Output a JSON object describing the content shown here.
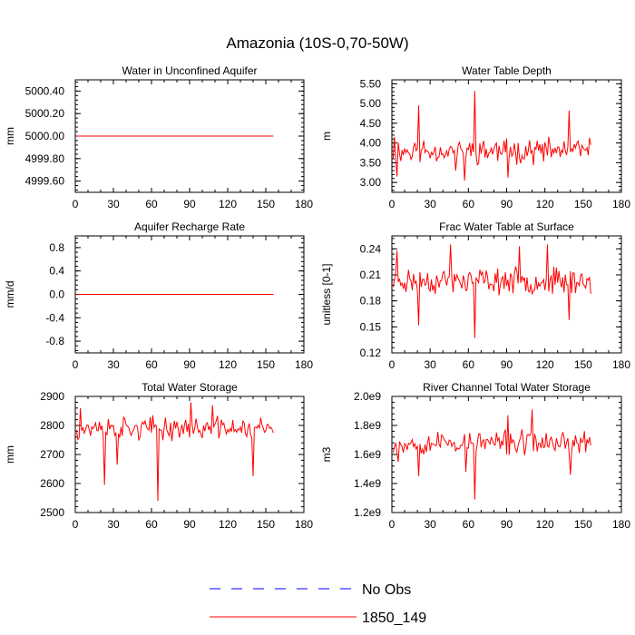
{
  "title": "Amazonia (10S-0,70-50W)",
  "colors": {
    "model": "#ff0000",
    "obs": "#0000ff",
    "axis": "#000000"
  },
  "legend": [
    {
      "label": "No Obs",
      "style": "dashed",
      "color": "#0000ff"
    },
    {
      "label": "1850_149",
      "style": "solid",
      "color": "#ff0000"
    }
  ],
  "chart_data": [
    {
      "type": "line",
      "title": "Water in Unconfined Aquifer",
      "ylabel": "mm",
      "xlim": [
        0,
        180
      ],
      "xticks": [
        0,
        30,
        60,
        90,
        120,
        150,
        180
      ],
      "ylim": [
        4999.5,
        5000.5
      ],
      "yticks": [
        4999.6,
        4999.8,
        5000.0,
        5000.2,
        5000.4
      ],
      "ytick_labels": [
        "4999.60",
        "4999.80",
        "5000.00",
        "5000.20",
        "5000.40"
      ],
      "series": [
        {
          "name": "1850_149",
          "mode": "constant",
          "x_start": 1,
          "x_end": 156,
          "value": 5000.0
        }
      ]
    },
    {
      "type": "line",
      "title": "Water Table Depth",
      "ylabel": "m",
      "xlim": [
        0,
        180
      ],
      "xticks": [
        0,
        30,
        60,
        90,
        120,
        150,
        180
      ],
      "ylim": [
        2.75,
        5.6
      ],
      "yticks": [
        3.0,
        3.5,
        4.0,
        4.5,
        5.0,
        5.5
      ],
      "ytick_labels": [
        "3.00",
        "3.50",
        "4.00",
        "4.50",
        "5.00",
        "5.50"
      ],
      "series": [
        {
          "name": "1850_149",
          "mode": "noise",
          "x_start": 1,
          "x_end": 156,
          "mean": 3.8,
          "amp": 0.38,
          "seed": 11,
          "spikes": [
            [
              21,
              4.95
            ],
            [
              65,
              5.32
            ],
            [
              57,
              3.05
            ],
            [
              91,
              3.12
            ],
            [
              139,
              4.82
            ],
            [
              2,
              4.15
            ],
            [
              4,
              3.15
            ],
            [
              50,
              3.3
            ]
          ]
        }
      ]
    },
    {
      "type": "line",
      "title": "Aquifer Recharge Rate",
      "ylabel": "mm/d",
      "xlim": [
        0,
        180
      ],
      "xticks": [
        0,
        30,
        60,
        90,
        120,
        150,
        180
      ],
      "ylim": [
        -1.0,
        1.0
      ],
      "yticks": [
        -0.8,
        -0.4,
        0.0,
        0.4,
        0.8
      ],
      "ytick_labels": [
        "-0.8",
        "-0.4",
        "0.0",
        "0.4",
        "0.8"
      ],
      "series": [
        {
          "name": "1850_149",
          "mode": "constant",
          "x_start": 1,
          "x_end": 156,
          "value": 0.0
        }
      ]
    },
    {
      "type": "line",
      "title": "Frac Water Table at Surface",
      "ylabel": "unitless [0-1]",
      "xlim": [
        0,
        180
      ],
      "xticks": [
        0,
        30,
        60,
        90,
        120,
        150,
        180
      ],
      "ylim": [
        0.12,
        0.255
      ],
      "yticks": [
        0.12,
        0.15,
        0.18,
        0.21,
        0.24
      ],
      "ytick_labels": [
        "0.12",
        "0.15",
        "0.18",
        "0.21",
        "0.24"
      ],
      "series": [
        {
          "name": "1850_149",
          "mode": "noise",
          "x_start": 1,
          "x_end": 156,
          "mean": 0.203,
          "amp": 0.018,
          "seed": 23,
          "spikes": [
            [
              65,
              0.137
            ],
            [
              21,
              0.152
            ],
            [
              46,
              0.245
            ],
            [
              139,
              0.158
            ],
            [
              4,
              0.238
            ],
            [
              100,
              0.243
            ],
            [
              122,
              0.245
            ]
          ]
        }
      ]
    },
    {
      "type": "line",
      "title": "Total Water Storage",
      "ylabel": "mm",
      "xlim": [
        0,
        180
      ],
      "xticks": [
        0,
        30,
        60,
        90,
        120,
        150,
        180
      ],
      "ylim": [
        2500,
        2900
      ],
      "yticks": [
        2500,
        2600,
        2700,
        2800,
        2900
      ],
      "ytick_labels": [
        "2500",
        "2600",
        "2700",
        "2800",
        "2900"
      ],
      "series": [
        {
          "name": "1850_149",
          "mode": "noise",
          "x_start": 1,
          "x_end": 156,
          "mean": 2790,
          "amp": 48,
          "seed": 37,
          "spikes": [
            [
              65,
              2540
            ],
            [
              23,
              2595
            ],
            [
              140,
              2625
            ],
            [
              91,
              2880
            ],
            [
              4,
              2860
            ],
            [
              108,
              2870
            ],
            [
              33,
              2665
            ]
          ]
        }
      ]
    },
    {
      "type": "line",
      "title": "River Channel Total Water Storage",
      "ylabel": "m3",
      "xlim": [
        0,
        180
      ],
      "xticks": [
        0,
        30,
        60,
        90,
        120,
        150,
        180
      ],
      "ylim": [
        1200000000.0,
        2000000000.0
      ],
      "yticks": [
        1200000000.0,
        1400000000.0,
        1600000000.0,
        1800000000.0,
        2000000000.0
      ],
      "ytick_labels": [
        "1.2e9",
        "1.4e9",
        "1.6e9",
        "1.8e9",
        "2.0e9"
      ],
      "series": [
        {
          "name": "1850_149",
          "mode": "noise",
          "x_start": 1,
          "x_end": 156,
          "mean": 1680000000.0,
          "amp": 100000000.0,
          "seed": 53,
          "spikes": [
            [
              65,
              1290000000.0
            ],
            [
              21,
              1450000000.0
            ],
            [
              110,
              1910000000.0
            ],
            [
              140,
              1460000000.0
            ],
            [
              91,
              1870000000.0
            ],
            [
              5,
              1550000000.0
            ],
            [
              58,
              1480000000.0
            ]
          ]
        }
      ]
    }
  ]
}
